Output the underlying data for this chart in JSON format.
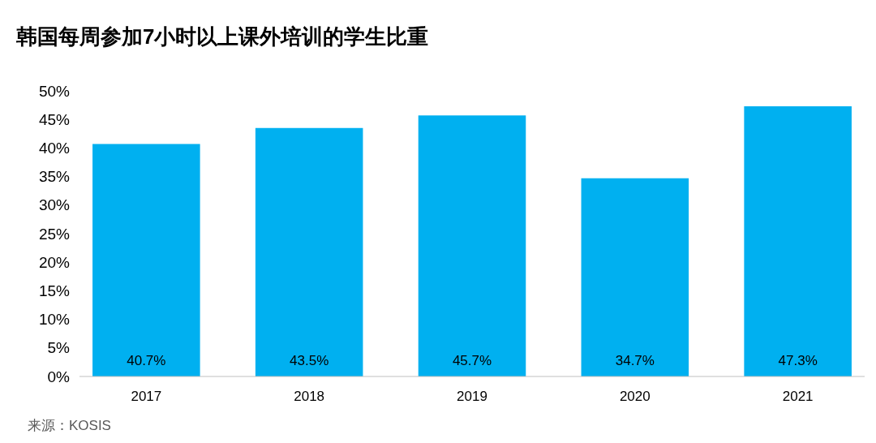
{
  "chart_data": {
    "type": "bar",
    "title": "韩国每周参加7小时以上课外培训的学生比重",
    "categories": [
      "2017",
      "2018",
      "2019",
      "2020",
      "2021"
    ],
    "values": [
      40.7,
      43.5,
      45.7,
      34.7,
      47.3
    ],
    "value_labels": [
      "40.7%",
      "43.5%",
      "45.7%",
      "34.7%",
      "47.3%"
    ],
    "color": "#00b0f0",
    "ylim": [
      0,
      50
    ],
    "yticks": [
      {
        "value": 0,
        "label": "0%"
      },
      {
        "value": 5,
        "label": "5%"
      },
      {
        "value": 10,
        "label": "10%"
      },
      {
        "value": 15,
        "label": "15%"
      },
      {
        "value": 20,
        "label": "20%"
      },
      {
        "value": 25,
        "label": "25%"
      },
      {
        "value": 30,
        "label": "30%"
      },
      {
        "value": 35,
        "label": "35%"
      },
      {
        "value": 40,
        "label": "40%"
      },
      {
        "value": 45,
        "label": "45%"
      },
      {
        "value": 50,
        "label": "50%"
      }
    ],
    "grid": false,
    "annotations": [
      "来源：KOSIS"
    ]
  }
}
